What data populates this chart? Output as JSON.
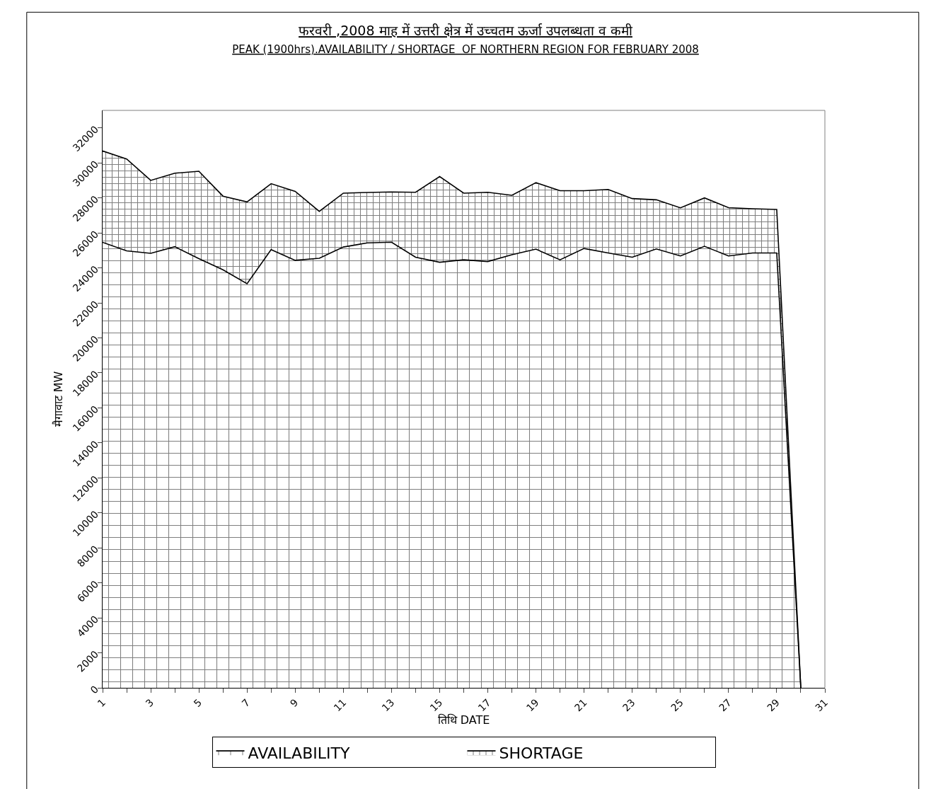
{
  "chart_data": {
    "type": "area",
    "stacked": true,
    "title": "फरवरी ,2008 माह में उत्तरी क्षेत्र में उच्चतम ऊर्जा उपलब्धता व कमी",
    "subtitle": "PEAK (1900hrs).AVAILABILITY / SHORTAGE  OF NORTHERN REGION FOR FEBRUARY 2008",
    "xlabel": "तिथि DATE",
    "ylabel": "मैगावाट MW",
    "x": [
      1,
      2,
      3,
      4,
      5,
      6,
      7,
      8,
      9,
      10,
      11,
      12,
      13,
      14,
      15,
      16,
      17,
      18,
      19,
      20,
      21,
      22,
      23,
      24,
      25,
      26,
      27,
      28,
      29,
      30
    ],
    "series": [
      {
        "name": "AVAILABILITY",
        "color": "#000000",
        "values": [
          25460,
          24970,
          24830,
          25210,
          24530,
          23890,
          23090,
          25040,
          24430,
          24550,
          25190,
          25430,
          25470,
          24610,
          24320,
          24460,
          24360,
          24750,
          25070,
          24460,
          25110,
          24850,
          24610,
          25080,
          24680,
          25230,
          24680,
          24850,
          24850,
          0
        ]
      },
      {
        "name": "SHORTAGE",
        "color": "#000000",
        "values": [
          5220,
          5250,
          4170,
          4200,
          4990,
          4210,
          4680,
          3770,
          3940,
          2680,
          3080,
          2880,
          2870,
          3710,
          4900,
          3810,
          3960,
          3400,
          3800,
          3950,
          3300,
          3630,
          3350,
          2810,
          2750,
          2770,
          2760,
          2530,
          2490,
          0
        ]
      }
    ],
    "xlim": [
      1,
      31
    ],
    "xticks": [
      1,
      {
        "value": 2,
        "label": null
      },
      3,
      {
        "value": 4,
        "label": null
      },
      5,
      {
        "value": 6,
        "label": null
      },
      7,
      {
        "value": 8,
        "label": null
      },
      9,
      {
        "value": 10,
        "label": null
      },
      11,
      {
        "value": 12,
        "label": null
      },
      13,
      {
        "value": 14,
        "label": null
      },
      15,
      {
        "value": 16,
        "label": null
      },
      17,
      {
        "value": 18,
        "label": null
      },
      19,
      {
        "value": 20,
        "label": null
      },
      21,
      {
        "value": 22,
        "label": null
      },
      23,
      {
        "value": 24,
        "label": null
      },
      25,
      {
        "value": 26,
        "label": null
      },
      27,
      {
        "value": 28,
        "label": null
      },
      29,
      {
        "value": 30,
        "label": null
      },
      31
    ],
    "ylim": [
      0,
      33000
    ],
    "yticks": [
      0,
      2000,
      4000,
      6000,
      8000,
      10000,
      12000,
      14000,
      16000,
      18000,
      20000,
      22000,
      24000,
      26000,
      28000,
      30000,
      32000
    ],
    "grid": false,
    "legend": "bottom"
  }
}
